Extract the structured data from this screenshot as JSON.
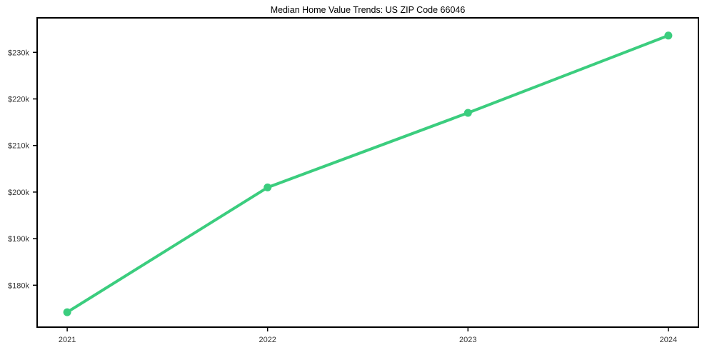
{
  "chart_data": {
    "type": "line",
    "title": "Median Home Value Trends: US ZIP Code 66046",
    "x": [
      2021,
      2022,
      2023,
      2024
    ],
    "values": [
      174200,
      201000,
      217000,
      233600
    ],
    "x_tick_labels": [
      "2021",
      "2022",
      "2023",
      "2024"
    ],
    "y_ticks": [
      {
        "value": 180000,
        "label": "$180k"
      },
      {
        "value": 190000,
        "label": "$190k"
      },
      {
        "value": 200000,
        "label": "$200k"
      },
      {
        "value": 210000,
        "label": "$210k"
      },
      {
        "value": 220000,
        "label": "$220k"
      },
      {
        "value": 230000,
        "label": "$230k"
      }
    ],
    "xlim": [
      2020.85,
      2024.15
    ],
    "ylim": [
      171000,
      237400
    ],
    "grid": false,
    "legend": "none",
    "line_color": "#3bcd7e",
    "marker_color": "#3bcd7e",
    "frame_color": "#000000",
    "tick_label_color": "#333333"
  }
}
